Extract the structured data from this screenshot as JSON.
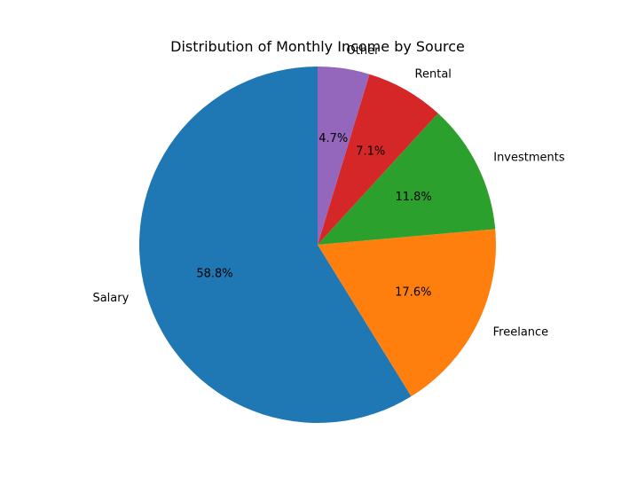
{
  "chart_data": {
    "type": "pie",
    "title": "Distribution of Monthly Income by Source",
    "categories": [
      "Salary",
      "Freelance",
      "Investments",
      "Rental",
      "Other"
    ],
    "values": [
      58.8,
      17.6,
      11.8,
      7.1,
      4.7
    ],
    "percent_labels": [
      "58.8%",
      "17.6%",
      "11.8%",
      "7.1%",
      "4.7%"
    ],
    "colors": [
      "#1f77b4",
      "#ff7f0e",
      "#2ca02c",
      "#d62728",
      "#9467bd"
    ],
    "start_angle_deg": 90,
    "direction": "counterclockwise",
    "legend": "none"
  }
}
